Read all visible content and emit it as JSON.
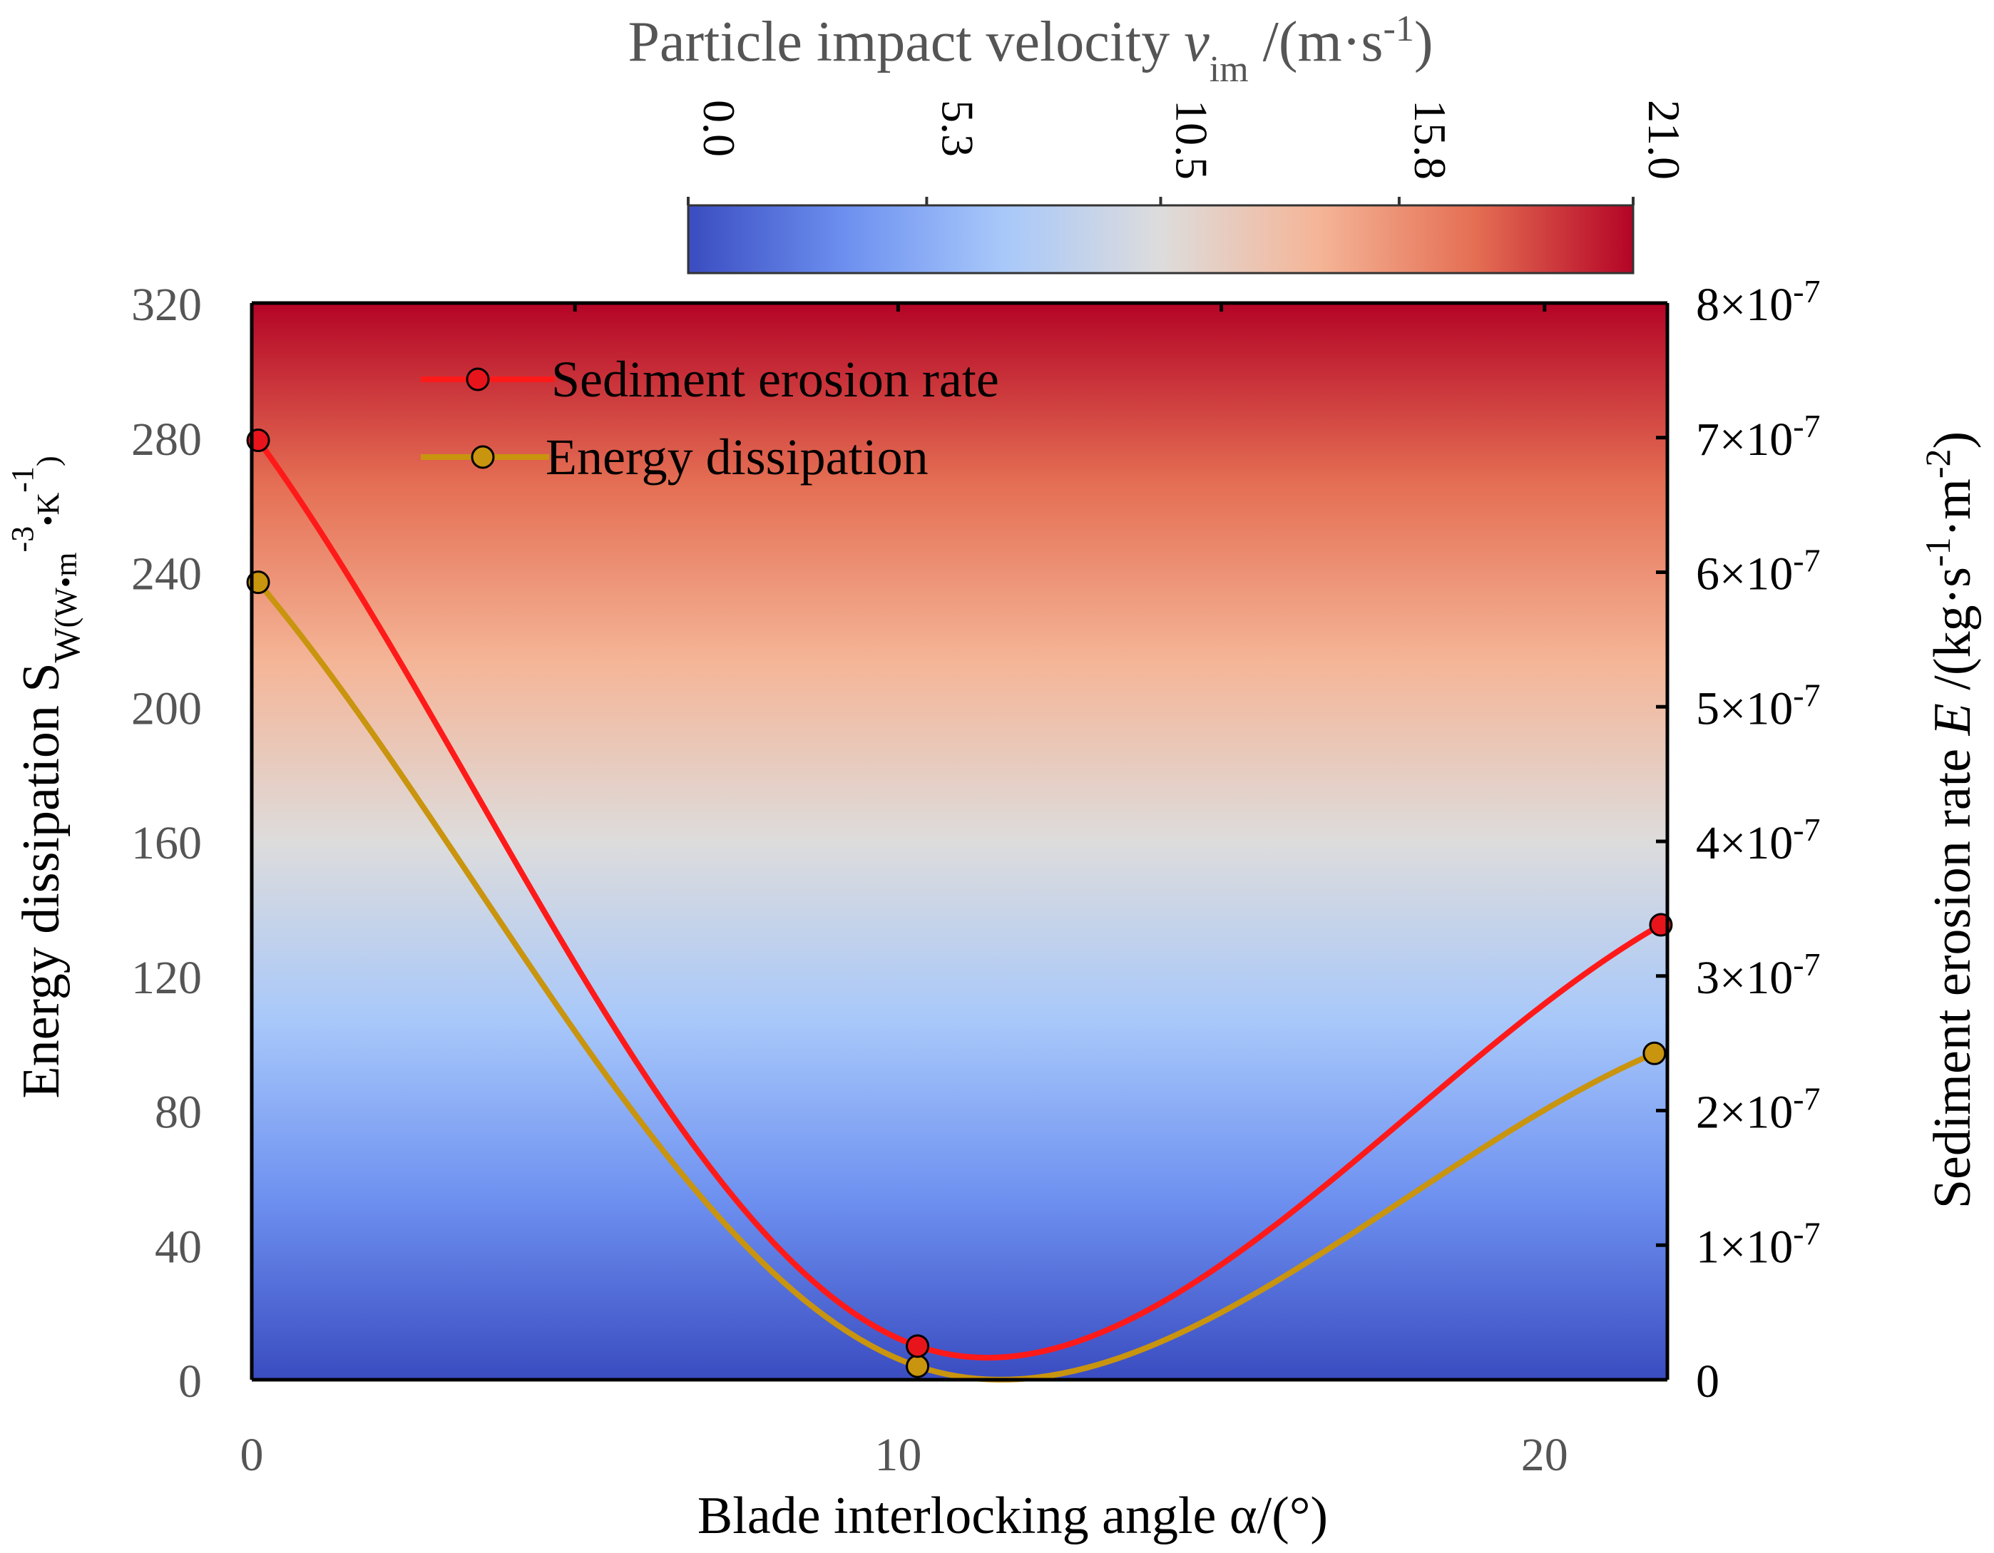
{
  "chart_data": {
    "type": "line",
    "xlabel": "Blade interlocking angle α/(°)",
    "x_range": [
      0,
      21.9
    ],
    "x_ticks": [
      0,
      10,
      20
    ],
    "x_tick_labels": [
      "0",
      "10",
      "20"
    ],
    "y_left": {
      "label_main": "Energy dissipation S",
      "label_sub": "W",
      "label_unit_a": "(W•m",
      "label_sup_a": "-3",
      "label_unit_b": "•K",
      "label_sup_b": "-1",
      "label_unit_c": ")",
      "range": [
        0,
        320
      ],
      "ticks": [
        0,
        40,
        80,
        120,
        160,
        200,
        240,
        280,
        320
      ],
      "tick_labels": [
        "0",
        "40",
        "80",
        "120",
        "160",
        "200",
        "240",
        "280",
        "320"
      ]
    },
    "y_right": {
      "label_main": "Sediment erosion rate ",
      "label_italic": "E",
      "label_unit_a": " /(kg·s",
      "label_sup_a": "-1",
      "label_unit_b": "·m",
      "label_sup_b": "-2",
      "label_unit_c": ")",
      "range": [
        0,
        8e-07
      ],
      "ticks": [
        0,
        1e-07,
        2e-07,
        3e-07,
        4e-07,
        5e-07,
        6e-07,
        7e-07,
        8e-07
      ],
      "tick_labels": [
        {
          "mant": "0",
          "exp": ""
        },
        {
          "mant": "1×10",
          "exp": "-7"
        },
        {
          "mant": "2×10",
          "exp": "-7"
        },
        {
          "mant": "3×10",
          "exp": "-7"
        },
        {
          "mant": "4×10",
          "exp": "-7"
        },
        {
          "mant": "5×10",
          "exp": "-7"
        },
        {
          "mant": "6×10",
          "exp": "-7"
        },
        {
          "mant": "7×10",
          "exp": "-7"
        },
        {
          "mant": "8×10",
          "exp": "-7"
        }
      ]
    },
    "series": [
      {
        "name": "Sediment erosion rate",
        "axis": "right",
        "color": "#ff1a1a",
        "marker_fill": "#e8141c",
        "x": [
          0.1,
          10.3,
          21.8
        ],
        "y": [
          6.98e-07,
          2.5e-08,
          3.38e-07
        ]
      },
      {
        "name": "Energy dissipation",
        "axis": "left",
        "color": "#c9940e",
        "marker_fill": "#c9940e",
        "x": [
          0.1,
          10.3,
          21.7
        ],
        "y": [
          237,
          4,
          97
        ]
      }
    ],
    "colorbar": {
      "title_a": "Particle impact velocity ",
      "title_italic": "v",
      "title_sub": "im",
      "title_b": " /(m·s",
      "title_sup": "-1",
      "title_c": ")",
      "range": [
        0,
        21
      ],
      "ticks": [
        0,
        5.3,
        10.5,
        15.8,
        21
      ],
      "tick_labels": [
        "0.0",
        "5.3",
        "10.5",
        "15.8",
        "21.0"
      ],
      "colors": [
        "#3a4cc0",
        "#6d90f0",
        "#a8c8fa",
        "#dddcdc",
        "#f5b597",
        "#e46e53",
        "#b40426"
      ]
    },
    "legend_position": "top-left"
  }
}
